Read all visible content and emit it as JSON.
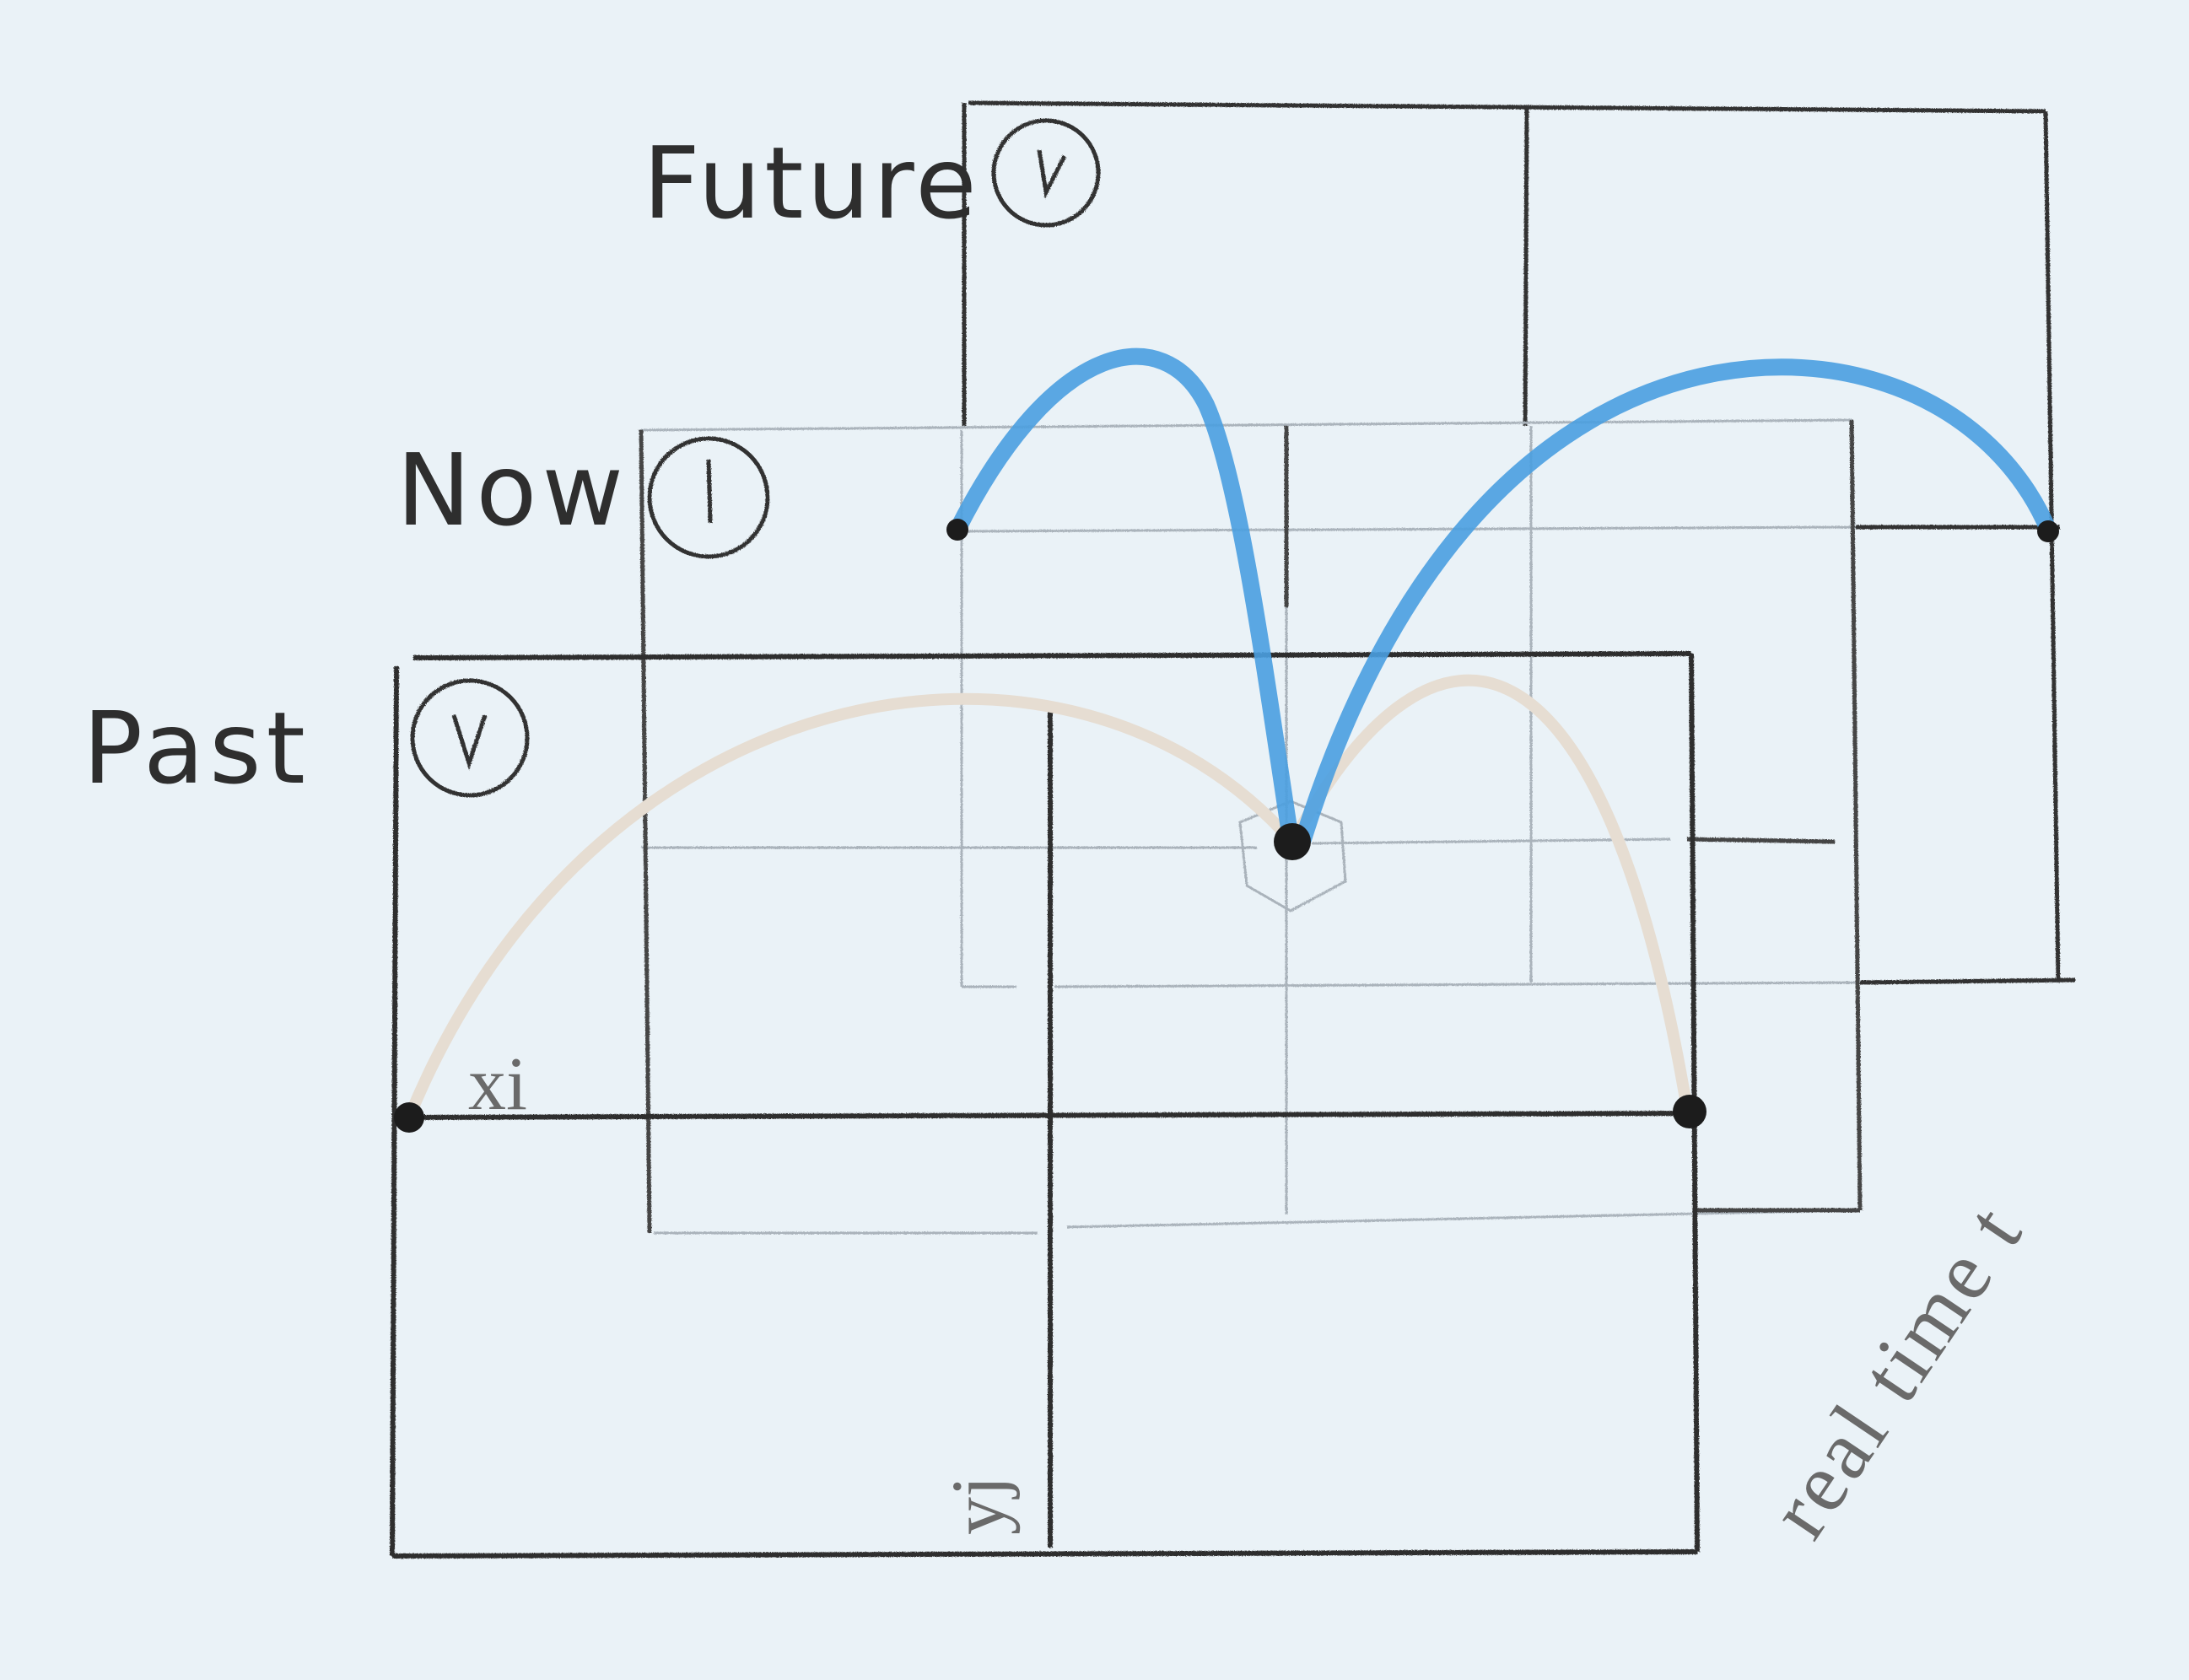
{
  "labels": {
    "future": "Future",
    "now": "Now",
    "past": "Past",
    "xi": "xi",
    "yj": "yj",
    "real_time": "real time t"
  },
  "colors": {
    "paper": "#eaf2f7",
    "pencil": "#3a3a3a",
    "faint_pencil": "#a9b2ba",
    "blue_arc": "#4a9fe0",
    "beige_arc": "#e6ddd2"
  },
  "icons": {
    "future_clock": "clock-icon",
    "now_clock": "clock-icon",
    "past_clock": "clock-icon"
  }
}
